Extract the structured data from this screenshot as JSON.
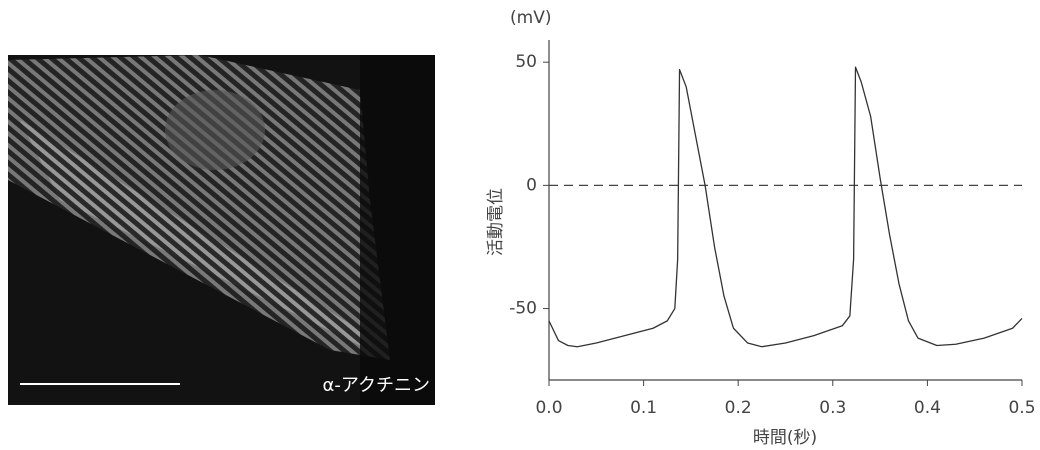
{
  "image_label": "α-アクチニン",
  "chart_data": {
    "type": "line",
    "y_unit": "(mV)",
    "ylabel": "活動電位",
    "xlabel": "時間(秒)",
    "x": [
      0,
      0.01,
      0.02,
      0.03,
      0.05,
      0.08,
      0.11,
      0.125,
      0.133,
      0.136,
      0.138,
      0.145,
      0.155,
      0.165,
      0.175,
      0.185,
      0.195,
      0.21,
      0.225,
      0.25,
      0.28,
      0.31,
      0.318,
      0.322,
      0.324,
      0.33,
      0.34,
      0.35,
      0.36,
      0.37,
      0.38,
      0.39,
      0.41,
      0.43,
      0.46,
      0.49,
      0.5
    ],
    "values": [
      -55,
      -63,
      -65,
      -65.5,
      -64,
      -61,
      -58,
      -55,
      -50,
      -30,
      47,
      40,
      20,
      0,
      -25,
      -45,
      -58,
      -64,
      -65.5,
      -64,
      -61,
      -57,
      -53,
      -30,
      48,
      42,
      28,
      3,
      -20,
      -40,
      -55,
      -62,
      -65,
      -64.5,
      -62,
      -58,
      -54
    ],
    "color": "#333333",
    "xlim": [
      0,
      0.5
    ],
    "xticks": [
      {
        "value": 0,
        "label": "0.0"
      },
      0.1,
      0.2,
      0.3,
      0.4,
      0.5
    ],
    "ylim": [
      -79,
      59
    ],
    "yticks": [
      50,
      0,
      -50
    ],
    "reference_line": 0
  }
}
